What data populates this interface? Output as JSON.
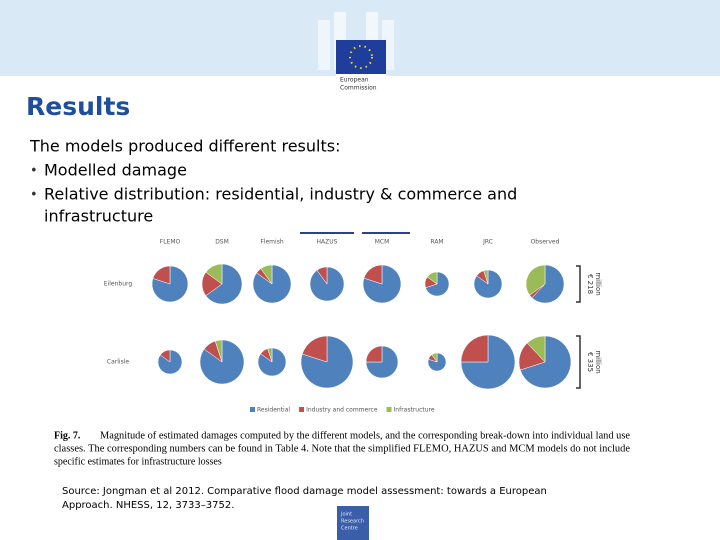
{
  "header": {
    "logo_text": [
      "European",
      "Commission"
    ]
  },
  "title": "Results",
  "intro": "The models produced different results:",
  "bullets": [
    [
      "Modelled damage"
    ],
    [
      "Relative distribution: residential, industry & commerce and",
      "infrastructure"
    ]
  ],
  "figure": {
    "models": [
      "FLEMO",
      "DSM",
      "Flemish",
      "HAZUS",
      "MCM",
      "RAM",
      "JRC",
      "Observed"
    ],
    "legend": [
      {
        "name": "Residential",
        "color": "#4f81bd"
      },
      {
        "name": "Industry and commerce",
        "color": "#c0504d"
      },
      {
        "name": "Infrastructure",
        "color": "#9bbb59"
      }
    ],
    "rows": [
      {
        "name": "Eilenburg",
        "scale_label": [
          "€ 218",
          "million"
        ],
        "pies": [
          {
            "size": 18,
            "shares": [
              80,
              20,
              0
            ]
          },
          {
            "size": 20,
            "shares": [
              65,
              20,
              15
            ]
          },
          {
            "size": 19,
            "shares": [
              85,
              5,
              10
            ]
          },
          {
            "size": 17,
            "shares": [
              90,
              10,
              0
            ]
          },
          {
            "size": 19,
            "shares": [
              80,
              20,
              0
            ]
          },
          {
            "size": 12,
            "shares": [
              70,
              15,
              15
            ]
          },
          {
            "size": 14,
            "shares": [
              85,
              10,
              5
            ]
          },
          {
            "size": 19,
            "shares": [
              62,
              3,
              35
            ]
          }
        ]
      },
      {
        "name": "Carlisle",
        "scale_label": [
          "€ 335",
          "million"
        ],
        "pies": [
          {
            "size": 12,
            "shares": [
              85,
              15,
              0
            ]
          },
          {
            "size": 22,
            "shares": [
              85,
              10,
              5
            ]
          },
          {
            "size": 14,
            "shares": [
              85,
              10,
              5
            ]
          },
          {
            "size": 26,
            "shares": [
              80,
              20,
              0
            ]
          },
          {
            "size": 16,
            "shares": [
              75,
              25,
              0
            ]
          },
          {
            "size": 9,
            "shares": [
              80,
              10,
              10
            ]
          },
          {
            "size": 27,
            "shares": [
              75,
              25,
              0
            ]
          },
          {
            "size": 26,
            "shares": [
              70,
              18,
              12
            ]
          }
        ]
      }
    ],
    "caption_label": "Fig. 7.",
    "caption": [
      "Magnitude of estimated damages computed by the different models, and the corresponding break-down into individual land use",
      "classes. The corresponding numbers can be found in Table 4. Note that the simplified FLEMO, HAZUS and MCM models do not include",
      "specific estimates for infrastructure losses"
    ]
  },
  "source": [
    "Source: Jongman et al 2012. Comparative flood damage model assessment: towards a European",
    "Approach. NHESS, 12, 3733–3752."
  ],
  "footer": {
    "logo_text": [
      "Joint",
      "Research",
      "Centre"
    ]
  }
}
